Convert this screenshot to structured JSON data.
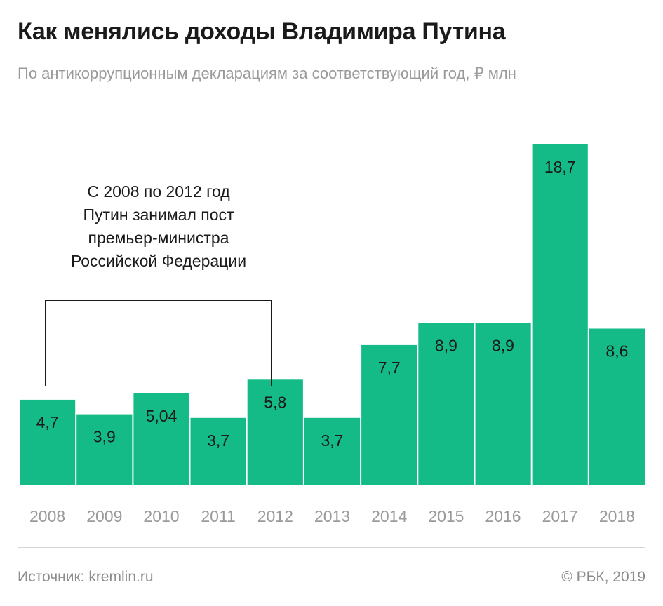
{
  "header": {
    "title": "Как менялись доходы Владимира Путина",
    "subtitle": "По антикоррупционным декларациям за соответствующий год, ₽ млн"
  },
  "annotation": {
    "lines": [
      "С 2008 по 2012 год",
      "Путин занимал пост",
      "премьер-министра",
      "Российской Федерации"
    ]
  },
  "footer": {
    "source": "Источник: kremlin.ru",
    "copyright": "© РБК, 2019"
  },
  "colors": {
    "bar": "#14bb86",
    "label": "#1a1a1a",
    "tick": "#9a9a9a"
  },
  "chart_data": {
    "type": "bar",
    "categories": [
      "2008",
      "2009",
      "2010",
      "2011",
      "2012",
      "2013",
      "2014",
      "2015",
      "2016",
      "2017",
      "2018"
    ],
    "values": [
      4.7,
      3.9,
      5.04,
      3.7,
      5.8,
      3.7,
      7.7,
      8.9,
      8.9,
      18.7,
      8.6
    ],
    "value_labels": [
      "4,7",
      "3,9",
      "5,04",
      "3,7",
      "5,8",
      "3,7",
      "7,7",
      "8,9",
      "8,9",
      "18,7",
      "8,6"
    ],
    "title": "Как менялись доходы Владимира Путина",
    "xlabel": "",
    "ylabel": "",
    "ylim": [
      0,
      18.7
    ],
    "grid": false,
    "legend": "none"
  }
}
